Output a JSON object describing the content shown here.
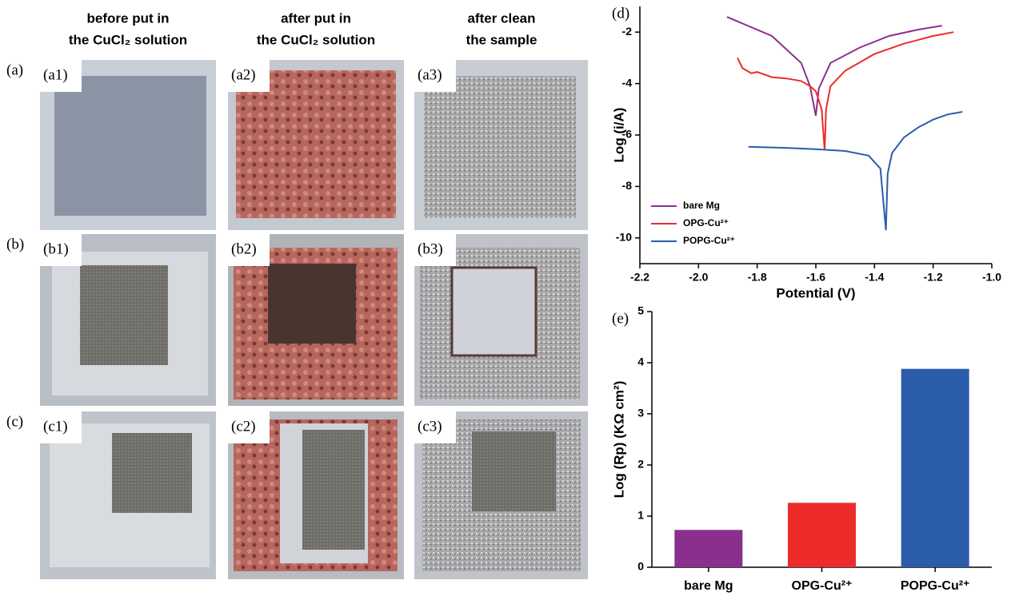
{
  "photo_grid": {
    "column_headers": [
      [
        "before put in",
        "the CuCl₂ solution"
      ],
      [
        "after put in",
        "the CuCl₂ solution"
      ],
      [
        "after clean",
        "the sample"
      ]
    ],
    "row_labels": [
      "(a)",
      "(b)",
      "(c)"
    ],
    "panel_labels": [
      [
        "(a1)",
        "(a2)",
        "(a3)"
      ],
      [
        "(b1)",
        "(b2)",
        "(b3)"
      ],
      [
        "(c1)",
        "(c2)",
        "(c3)"
      ]
    ]
  },
  "chart_data": [
    {
      "type": "line",
      "label": "(d)",
      "x_label": "Potential (V)",
      "y_label": "Log (i/A)",
      "xlim": [
        -2.2,
        -1.0
      ],
      "xticks": [
        -2.2,
        {
          "value": -2,
          "label": "-2.0"
        },
        -1.8,
        -1.6,
        -1.4,
        -1.2,
        {
          "value": -1,
          "label": "-1.0"
        }
      ],
      "ylim": [
        -11,
        -1
      ],
      "yticks": [
        -10,
        -8,
        -6,
        -4,
        -2
      ],
      "legend": "lower-left",
      "series": [
        {
          "name": "bare Mg",
          "color": "#8b2f8f",
          "x": [
            -1.903,
            -1.75,
            -1.65,
            -1.62,
            -1.6,
            -1.59,
            -1.55,
            -1.45,
            -1.35,
            -1.25,
            -1.17
          ],
          "values": [
            -1.41,
            -2.15,
            -3.2,
            -4.1,
            -5.25,
            -4.2,
            -3.2,
            -2.6,
            -2.15,
            -1.9,
            -1.75
          ]
        },
        {
          "name": "OPG-Cu²⁺",
          "color": "#ee2b2b",
          "x": [
            -1.867,
            -1.85,
            -1.82,
            -1.8,
            -1.75,
            -1.7,
            -1.65,
            -1.62,
            -1.6,
            -1.58,
            -1.57,
            -1.565,
            -1.55,
            -1.5,
            -1.4,
            -1.3,
            -1.2,
            -1.13
          ],
          "values": [
            -3.0,
            -3.4,
            -3.6,
            -3.55,
            -3.75,
            -3.8,
            -3.9,
            -4.1,
            -4.3,
            -5.0,
            -6.6,
            -5.0,
            -4.1,
            -3.5,
            -2.85,
            -2.45,
            -2.15,
            -2.0
          ]
        },
        {
          "name": "POPG-Cu²⁺",
          "color": "#2a5caa",
          "x": [
            -1.83,
            -1.7,
            -1.6,
            -1.5,
            -1.42,
            -1.38,
            -1.361,
            -1.355,
            -1.34,
            -1.3,
            -1.25,
            -1.2,
            -1.15,
            -1.1
          ],
          "values": [
            -6.46,
            -6.5,
            -6.55,
            -6.62,
            -6.8,
            -7.3,
            -9.7,
            -7.5,
            -6.7,
            -6.1,
            -5.7,
            -5.4,
            -5.2,
            -5.1
          ]
        }
      ]
    },
    {
      "type": "bar",
      "label": "(e)",
      "y_label": "Log (Rp) (KΩ cm²)",
      "categories": [
        "bare Mg",
        "OPG-Cu²⁺",
        "POPG-Cu²⁺"
      ],
      "values": [
        0.73,
        1.26,
        3.88
      ],
      "colors": [
        "#8b2f8f",
        "#ee2b2b",
        "#2a5caa"
      ],
      "ylim": [
        0,
        5
      ],
      "yticks": [
        0,
        1,
        2,
        3,
        4,
        5
      ]
    }
  ]
}
